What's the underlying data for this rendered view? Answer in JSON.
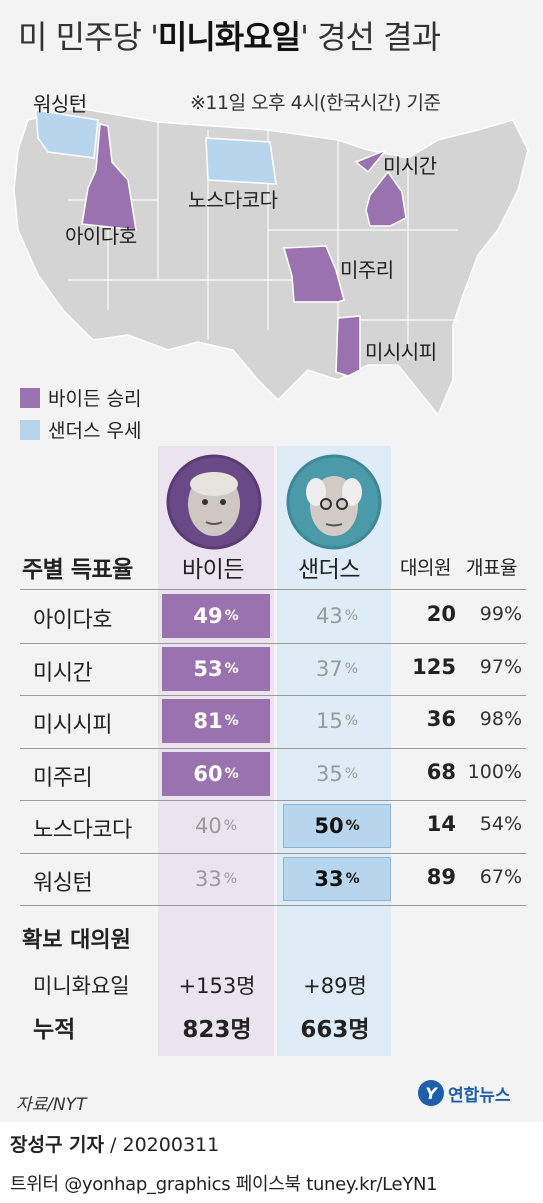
{
  "title": {
    "prefix": "미 민주당 '",
    "bold": "미니화요일",
    "suffix": "' 경선 결과"
  },
  "base_note": "※11일 오후 4시(한국시간) 기준",
  "colors": {
    "biden": "#9b72b0",
    "sanders": "#b7d6ee",
    "biden_col_bg": "#ebe3f0",
    "sanders_col_bg": "#ddecf7",
    "map_gray": "#d4d4d4"
  },
  "map_labels": {
    "washington": "워싱턴",
    "north_dakota": "노스다코다",
    "idaho": "아이다호",
    "michigan": "미시간",
    "missouri": "미주리",
    "mississippi": "미시시피"
  },
  "legend": [
    {
      "label": "바이든 승리",
      "color": "#9b72b0"
    },
    {
      "label": "샌더스 우세",
      "color": "#b7d6ee"
    }
  ],
  "candidates": {
    "biden": "바이든",
    "sanders": "샌더스"
  },
  "table_header": {
    "row_title": "주별 득표율",
    "delegates": "대의원",
    "counted": "개표율"
  },
  "chart_data": {
    "type": "table",
    "title": "미 민주당 '미니화요일' 경선 결과",
    "columns": [
      "바이든",
      "샌더스",
      "대의원",
      "개표율"
    ],
    "states": [
      "아이다호",
      "미시간",
      "미시시피",
      "미주리",
      "노스다코다",
      "워싱턴"
    ],
    "series": [
      {
        "name": "바이든",
        "values": [
          49,
          53,
          81,
          60,
          40,
          33
        ]
      },
      {
        "name": "샌더스",
        "values": [
          43,
          37,
          15,
          35,
          50,
          33
        ]
      }
    ],
    "winner": [
      "biden",
      "biden",
      "biden",
      "biden",
      "sanders",
      "sanders"
    ],
    "delegates": [
      20,
      125,
      36,
      68,
      14,
      89
    ],
    "counted_pct": [
      "99%",
      "97%",
      "98%",
      "100%",
      "54%",
      "67%"
    ],
    "pct_unit": "%"
  },
  "secured": {
    "title": "확보 대의원",
    "mini_label": "미니화요일",
    "total_label": "누적",
    "biden_mini": "+153명",
    "sanders_mini": "+89명",
    "biden_total": "823명",
    "sanders_total": "663명"
  },
  "source": "자료/NYT",
  "logo": {
    "glyph": "Y",
    "text": "연합뉴스"
  },
  "credit": {
    "reporter": "장성구 기자",
    "sep_date": " / 20200311"
  },
  "social": "트위터 @yonhap_graphics  페이스북 tuney.kr/LeYN1"
}
